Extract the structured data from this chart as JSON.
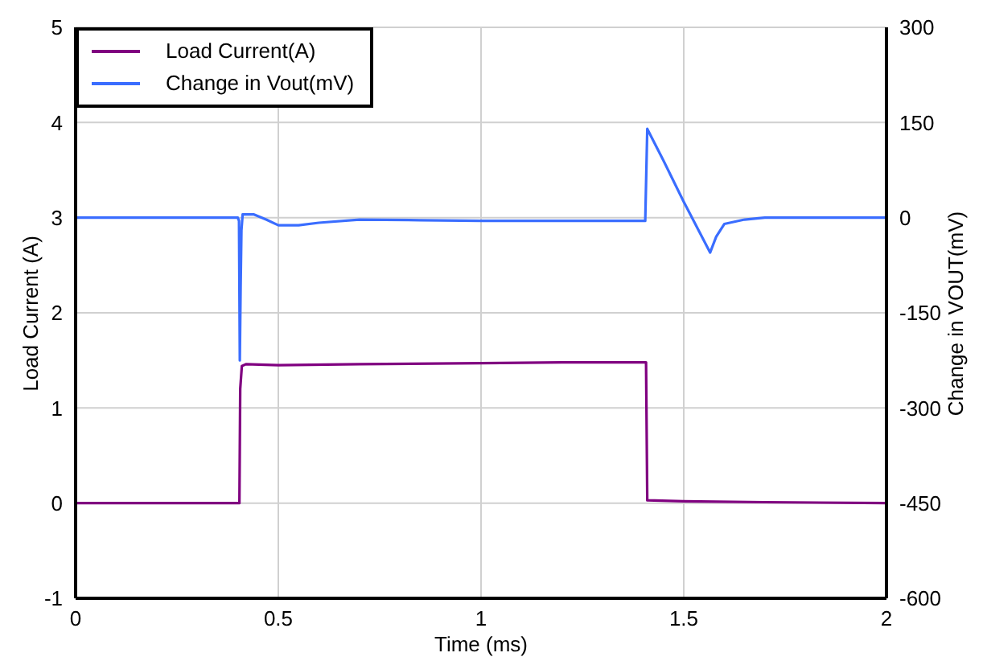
{
  "chart_data": {
    "type": "line",
    "xlabel": "Time (ms)",
    "ylabel": "Load Current (A)",
    "y2label": "Change in VOUT(mV)",
    "xlim": [
      0,
      2
    ],
    "xticks": [
      0,
      0.5,
      1,
      1.5,
      2
    ],
    "ylim": [
      -1,
      5
    ],
    "yticks": [
      -1,
      0,
      1,
      2,
      3,
      4,
      5
    ],
    "y2lim": [
      -600,
      300
    ],
    "y2ticks": [
      -600,
      -450,
      -300,
      -150,
      0,
      150,
      300
    ],
    "grid": true,
    "legend": "top left",
    "marker": "none",
    "line_style": "solid",
    "series": [
      {
        "name": "Load Current(A)",
        "color": "#800080",
        "x": [
          0,
          0.2,
          0.404,
          0.406,
          0.41,
          0.42,
          0.5,
          0.7,
          1.0,
          1.2,
          1.4,
          1.407,
          1.41,
          1.5,
          1.7,
          2.0
        ],
        "values": [
          0,
          0,
          0,
          1.2,
          1.44,
          1.46,
          1.45,
          1.46,
          1.47,
          1.48,
          1.48,
          1.48,
          0.03,
          0.02,
          0.01,
          0
        ]
      },
      {
        "name": "Change in Vout(mV)",
        "color": "#3a6dff",
        "axis": "y2",
        "x": [
          0,
          0.2,
          0.4,
          0.403,
          0.405,
          0.407,
          0.409,
          0.412,
          0.42,
          0.44,
          0.47,
          0.5,
          0.55,
          0.6,
          0.7,
          0.85,
          1.0,
          1.2,
          1.4,
          1.405,
          1.41,
          1.45,
          1.5,
          1.565,
          1.58,
          1.6,
          1.65,
          1.7,
          1.85,
          2.0
        ],
        "values": [
          0,
          0,
          0,
          -5,
          -225,
          -110,
          -20,
          5,
          5,
          5,
          -3,
          -12,
          -12,
          -8,
          -3,
          -4,
          -5,
          -5,
          -5,
          -5,
          140,
          90,
          25,
          -55,
          -30,
          -10,
          -3,
          0,
          0,
          0
        ]
      }
    ]
  }
}
